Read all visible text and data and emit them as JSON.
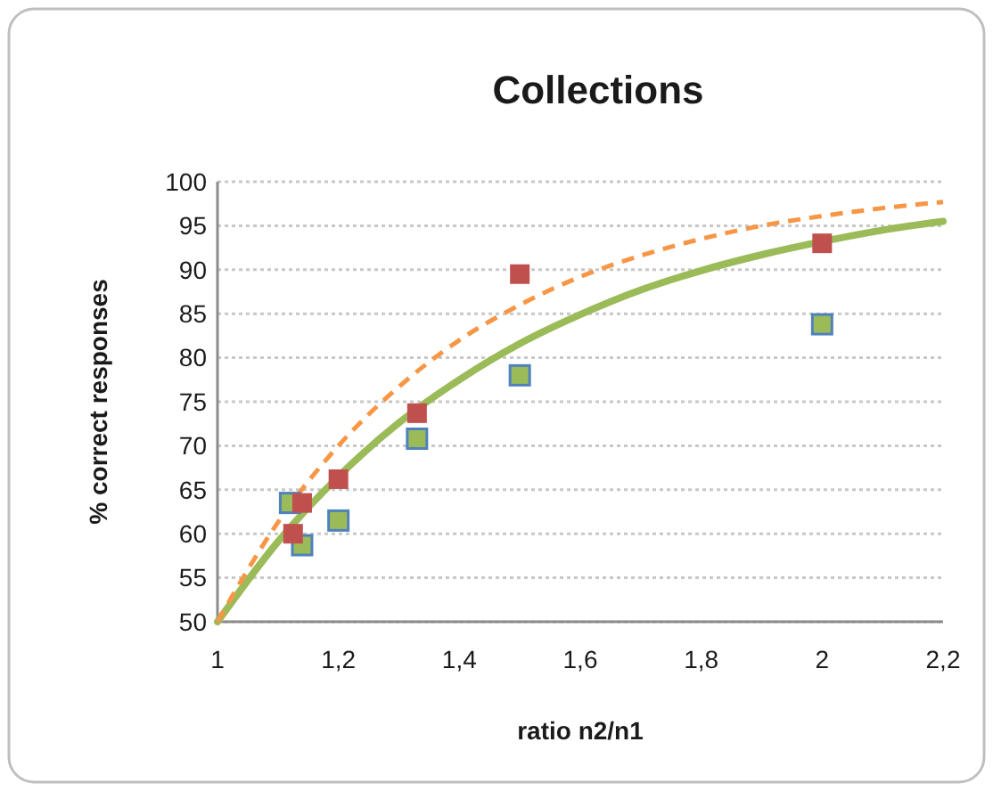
{
  "chart_data": {
    "type": "scatter",
    "title": "Collections",
    "xlabel": "ratio n2/n1",
    "ylabel": "% correct responses",
    "xlim": [
      1,
      2.2
    ],
    "ylim": [
      50,
      100
    ],
    "xticks": [
      1,
      {
        "value": 1.2,
        "label": "1,2"
      },
      {
        "value": 1.4,
        "label": "1,4"
      },
      {
        "value": 1.6,
        "label": "1,6"
      },
      {
        "value": 1.8,
        "label": "1,8"
      },
      2,
      {
        "value": 2.2,
        "label": "2,2"
      }
    ],
    "yticks": [
      50,
      55,
      60,
      65,
      70,
      75,
      80,
      85,
      90,
      95,
      100
    ],
    "grid": "y",
    "series": [
      {
        "marker": "square",
        "color": "#9bbb59",
        "x": [
          1.12,
          1.14,
          1.2,
          1.33,
          1.5,
          2.0
        ],
        "values": [
          63.5,
          58.7,
          61.5,
          70.8,
          78,
          83.8
        ]
      },
      {
        "marker": "square",
        "color": "#c0504d",
        "x": [
          1.125,
          1.14,
          1.2,
          1.33,
          1.5,
          2.0
        ],
        "values": [
          60,
          63.5,
          66.2,
          73.7,
          89.5,
          93
        ]
      },
      {
        "type": "line",
        "line_style": "solid",
        "color": "#9bbb59",
        "x": [
          1,
          1.1,
          1.2,
          1.3,
          1.4,
          1.5,
          1.6,
          1.7,
          1.8,
          1.9,
          2.0,
          2.1,
          2.2
        ],
        "values": [
          50,
          59.1,
          66.5,
          72.6,
          77.5,
          81.6,
          84.9,
          87.7,
          89.9,
          91.7,
          93.2,
          94.5,
          95.5
        ]
      },
      {
        "type": "line",
        "line_style": "dashed",
        "color": "#f79646",
        "x": [
          1,
          1.1,
          1.2,
          1.3,
          1.4,
          1.5,
          1.6,
          1.7,
          1.8,
          1.9,
          2.0,
          2.1,
          2.2
        ],
        "values": [
          50,
          61.3,
          70.0,
          76.7,
          82.0,
          86.0,
          89.2,
          91.6,
          93.5,
          95.0,
          96.1,
          97.0,
          97.7
        ]
      }
    ]
  }
}
